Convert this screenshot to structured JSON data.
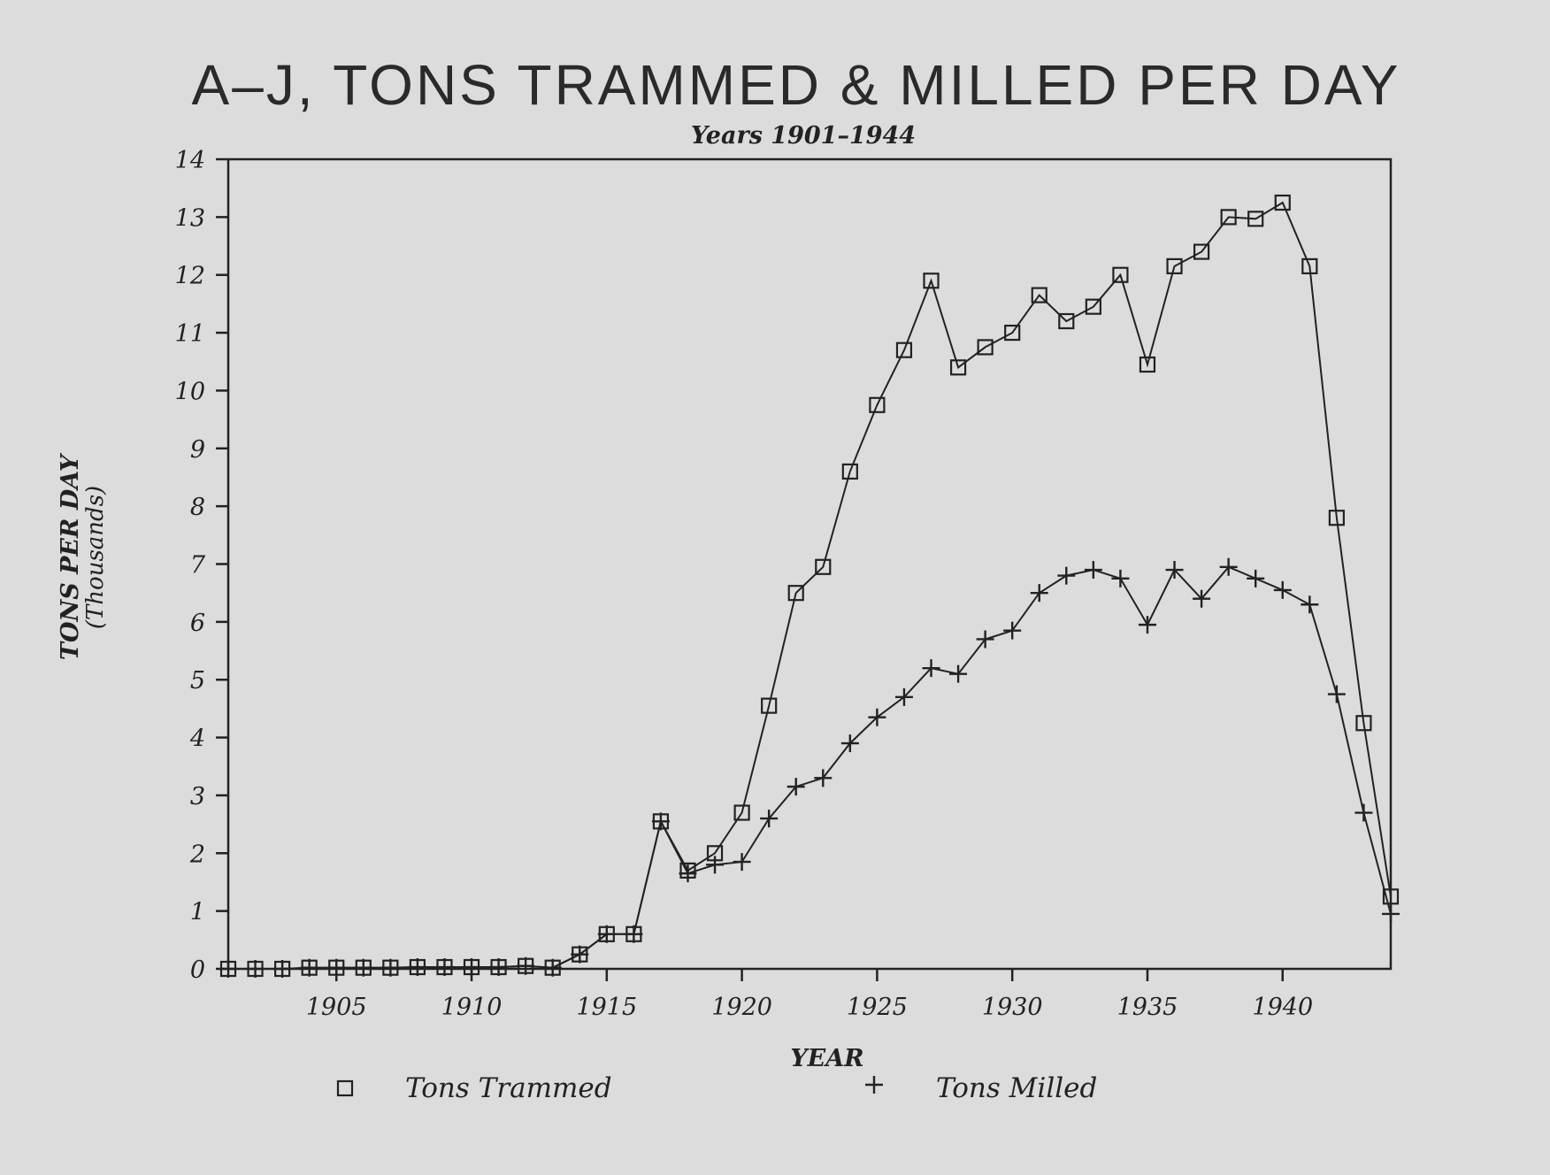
{
  "chart_data": {
    "type": "line",
    "title": "A–J, TONS TRAMMED & MILLED PER DAY",
    "subtitle": "Years 1901–1944",
    "xlabel": "YEAR",
    "ylabel": "TONS PER DAY",
    "ylabel_sub": "(Thousands)",
    "xlim": [
      1901,
      1944
    ],
    "ylim": [
      0,
      14
    ],
    "x_ticks": [
      1905,
      1910,
      1915,
      1920,
      1925,
      1930,
      1935,
      1940
    ],
    "y_ticks": [
      0,
      1,
      2,
      3,
      4,
      5,
      6,
      7,
      8,
      9,
      10,
      11,
      12,
      13,
      14
    ],
    "grid": false,
    "legend_position": "bottom",
    "x": [
      1901,
      1902,
      1903,
      1904,
      1905,
      1906,
      1907,
      1908,
      1909,
      1910,
      1911,
      1912,
      1913,
      1914,
      1915,
      1916,
      1917,
      1918,
      1919,
      1920,
      1921,
      1922,
      1923,
      1924,
      1925,
      1926,
      1927,
      1928,
      1929,
      1930,
      1931,
      1932,
      1933,
      1934,
      1935,
      1936,
      1937,
      1938,
      1939,
      1940,
      1941,
      1942,
      1943,
      1944
    ],
    "series": [
      {
        "name": "Tons Trammed",
        "marker": "square",
        "values": [
          0,
          0,
          0,
          0.02,
          0.02,
          0.02,
          0.02,
          0.03,
          0.03,
          0.03,
          0.03,
          0.05,
          0.02,
          0.25,
          0.6,
          0.6,
          2.55,
          1.7,
          2.0,
          2.7,
          4.55,
          6.5,
          6.95,
          8.6,
          9.75,
          10.7,
          11.9,
          10.4,
          10.75,
          11.0,
          11.65,
          11.2,
          11.45,
          12.0,
          10.45,
          12.15,
          12.4,
          13.0,
          12.97,
          13.25,
          12.15,
          7.8,
          4.25,
          1.25
        ]
      },
      {
        "name": "Tons Milled",
        "marker": "plus",
        "values": [
          0,
          0,
          0,
          0.02,
          0.02,
          0.02,
          0.02,
          0.03,
          0.03,
          0.03,
          0.03,
          0.05,
          0.02,
          0.25,
          0.6,
          0.6,
          2.55,
          1.65,
          1.8,
          1.85,
          2.6,
          3.15,
          3.3,
          3.9,
          4.35,
          4.7,
          5.2,
          5.1,
          5.7,
          5.85,
          6.5,
          6.8,
          6.9,
          6.75,
          5.95,
          6.9,
          6.4,
          6.95,
          6.75,
          6.55,
          6.3,
          4.75,
          2.7,
          0.95
        ]
      }
    ]
  }
}
